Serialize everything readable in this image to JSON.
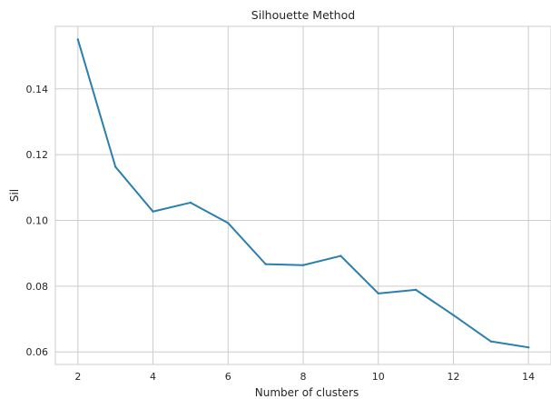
{
  "chart_data": {
    "type": "line",
    "title": "Silhouette Method",
    "xlabel": "Number of clusters",
    "ylabel": "Sil",
    "xlim": [
      1.4,
      14.6
    ],
    "ylim": [
      0.0562,
      0.159
    ],
    "xticks": [
      2,
      4,
      6,
      8,
      10,
      12,
      14
    ],
    "yticks": [
      0.06,
      0.08,
      0.1,
      0.12,
      0.14
    ],
    "ytick_labels": [
      "0.06",
      "0.08",
      "0.10",
      "0.12",
      "0.14"
    ],
    "grid": true,
    "line_color": "#2b7fae",
    "series": [
      {
        "x": [
          2,
          3,
          4,
          5,
          6,
          7,
          8,
          9,
          10,
          11,
          12,
          13,
          14
        ],
        "values": [
          0.155,
          0.1163,
          0.1027,
          0.1054,
          0.0992,
          0.0867,
          0.0864,
          0.0892,
          0.0778,
          0.0789,
          0.0712,
          0.0632,
          0.0614
        ]
      }
    ]
  }
}
